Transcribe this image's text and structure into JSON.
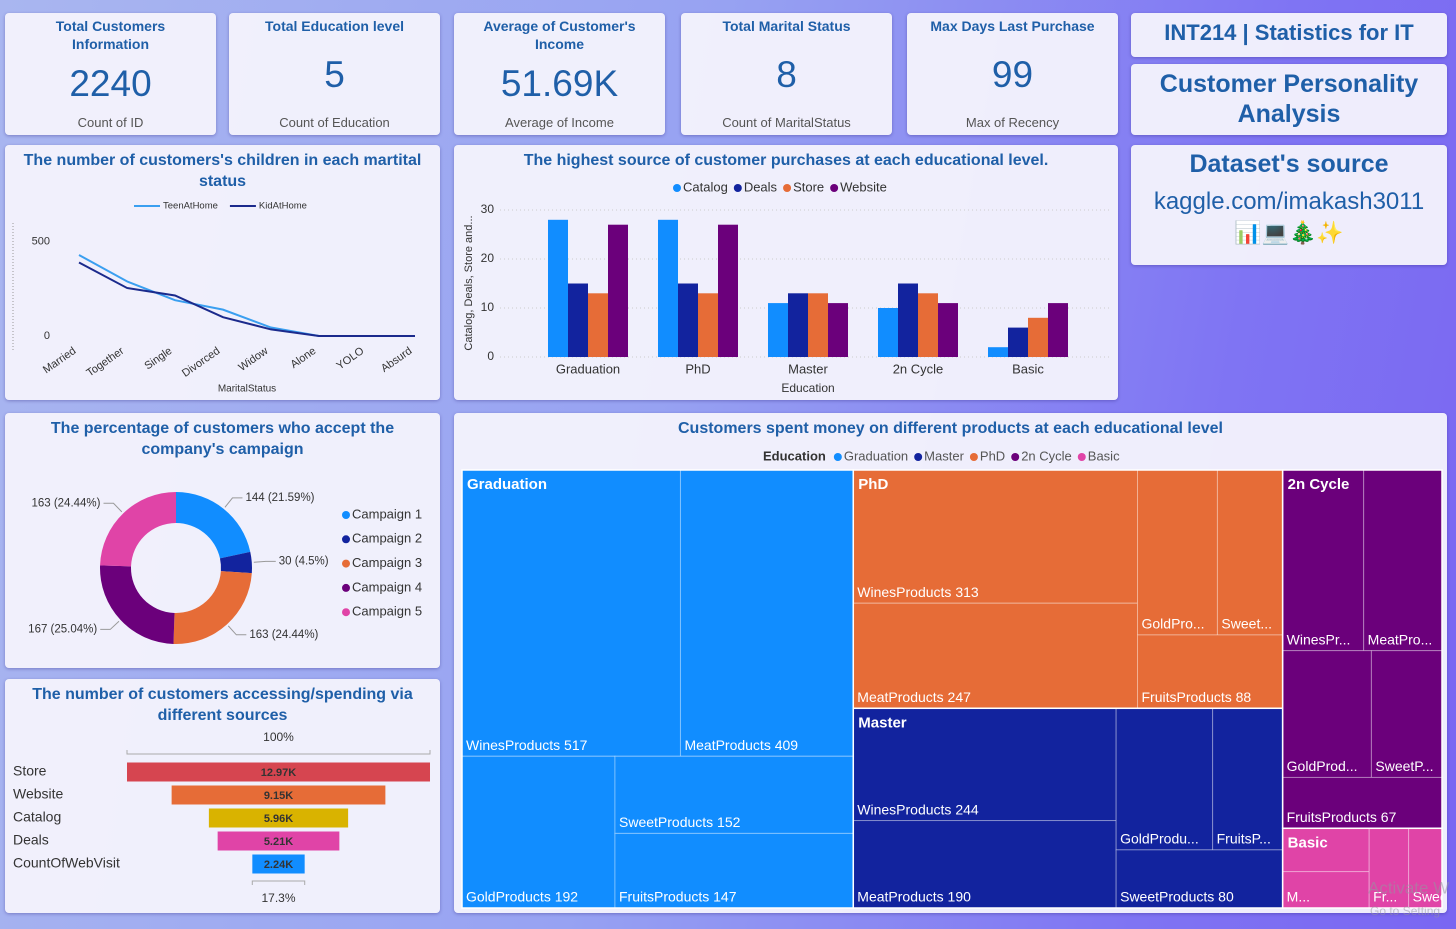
{
  "header": {
    "course": "INT214 | Statistics for IT",
    "title": "Customer Personality Analysis",
    "source_title": "Dataset's source",
    "source": "kaggle.com/imakash3011",
    "icons": "📊💻🎄✨"
  },
  "cards": [
    {
      "title": "Total Customers Information",
      "value": 2240,
      "label": "Count of ID"
    },
    {
      "title": "Total Education level",
      "value": 5,
      "label": "Count of Education"
    },
    {
      "title": "Average of Customer's Income",
      "value": "51.69K",
      "label": "Average of Income"
    },
    {
      "title": "Total Marital Status",
      "value": 8,
      "label": "Count of MaritalStatus"
    },
    {
      "title": "Max Days Last Purchase",
      "value": 99,
      "label": "Max of Recency"
    }
  ],
  "chart_data": [
    {
      "type": "line",
      "title": "The number of customers's children in each martital status",
      "categories": [
        "Married",
        "Together",
        "Single",
        "Divorced",
        "Widow",
        "Alone",
        "YOLO",
        "Absurd"
      ],
      "series": [
        {
          "name": "TeenAtHome",
          "color": "#3a9ff0",
          "values": [
            430,
            290,
            190,
            140,
            45,
            0,
            0,
            0
          ]
        },
        {
          "name": "KidAtHome",
          "color": "#1b2a8c",
          "values": [
            390,
            255,
            215,
            100,
            35,
            0,
            0,
            0
          ]
        }
      ],
      "xlabel": "MaritalStatus",
      "ylim": [
        0,
        600
      ],
      "yticks": [
        0,
        500
      ],
      "grid": false
    },
    {
      "type": "bar",
      "title": "The highest source of customer purchases at each educational level.",
      "categories": [
        "Graduation",
        "PhD",
        "Master",
        "2n Cycle",
        "Basic"
      ],
      "series": [
        {
          "name": "Catalog",
          "color": "#118dff",
          "values": [
            28,
            28,
            11,
            10,
            2
          ]
        },
        {
          "name": "Deals",
          "color": "#12239e",
          "values": [
            15,
            15,
            13,
            15,
            6
          ]
        },
        {
          "name": "Store",
          "color": "#e66c37",
          "values": [
            13,
            13,
            13,
            13,
            8
          ]
        },
        {
          "name": "Website",
          "color": "#6b007b",
          "values": [
            27,
            27,
            11,
            11,
            11
          ]
        }
      ],
      "xlabel": "Education",
      "ylabel": "Catalog, Deals, Store and...",
      "ylim": [
        0,
        30
      ],
      "yticks": [
        0,
        10,
        20,
        30
      ],
      "grid": true
    },
    {
      "type": "donut",
      "title": "The percentage of customers who accept the company's campaign",
      "categories": [
        "Campaign 1",
        "Campaign 2",
        "Campaign 3",
        "Campaign 4",
        "Campaign 5"
      ],
      "values": [
        144,
        30,
        163,
        167,
        163
      ],
      "value_labels": [
        "144 (21.59%)",
        "30 (4.5%)",
        "163 (24.44%)",
        "167 (25.04%)",
        "163 (24.44%)"
      ],
      "colors": [
        "#118dff",
        "#12239e",
        "#e66c37",
        "#6b007b",
        "#e044a7"
      ]
    },
    {
      "type": "funnel",
      "title": "The number of customers accessing/spending via different sources",
      "categories": [
        "Store",
        "Website",
        "Catalog",
        "Deals",
        "CountOfWebVisit"
      ],
      "values": [
        12970,
        9150,
        5960,
        5210,
        2240
      ],
      "value_labels": [
        "12.97K",
        "9.15K",
        "5.96K",
        "5.21K",
        "2.24K"
      ],
      "colors": [
        "#d64550",
        "#e66c37",
        "#d9b300",
        "#e044a7",
        "#118dff"
      ],
      "top_rate": {
        "value": 100,
        "label": "100%"
      },
      "bottom_rate": {
        "value": 17.3,
        "label": "17.3%"
      }
    },
    {
      "type": "treemap",
      "title": "Customers spent money on different products at each educational level",
      "legend_title": "Education",
      "legend": [
        "Graduation",
        "Master",
        "PhD",
        "2n Cycle",
        "Basic"
      ],
      "groups": [
        {
          "name": "Graduation",
          "color": "#118dff",
          "leaves": [
            {
              "label": "WinesProducts 517",
              "value": 517
            },
            {
              "label": "MeatProducts 409",
              "value": 409
            },
            {
              "label": "GoldProducts 192",
              "value": 192
            },
            {
              "label": "SweetProducts 152",
              "value": 152
            },
            {
              "label": "FruitsProducts 147",
              "value": 147
            }
          ]
        },
        {
          "name": "PhD",
          "color": "#e66c37",
          "leaves": [
            {
              "label": "WinesProducts 313",
              "value": 313
            },
            {
              "label": "MeatProducts 247",
              "value": 247
            },
            {
              "label": "GoldPro...",
              "value": 109
            },
            {
              "label": "Sweet...",
              "value": 89
            },
            {
              "label": "FruitsProducts 88",
              "value": 88
            }
          ]
        },
        {
          "name": "Master",
          "color": "#12239e",
          "leaves": [
            {
              "label": "WinesProducts 244",
              "value": 244
            },
            {
              "label": "MeatProducts 190",
              "value": 190
            },
            {
              "label": "GoldProdu...",
              "value": 113
            },
            {
              "label": "FruitsP...",
              "value": 82
            },
            {
              "label": "SweetProducts 80",
              "value": 80
            }
          ]
        },
        {
          "name": "2n Cycle",
          "color": "#6b007b",
          "leaves": [
            {
              "label": "WinesPr...",
              "value": 121
            },
            {
              "label": "MeatPro...",
              "value": 117
            },
            {
              "label": "GoldProd...",
              "value": 93
            },
            {
              "label": "SweetP...",
              "value": 74
            },
            {
              "label": "FruitsProducts 67",
              "value": 67
            }
          ]
        },
        {
          "name": "Basic",
          "color": "#e044a7",
          "leaves": [
            {
              "label": null,
              "value": 31
            },
            {
              "label": "M...",
              "value": 26
            },
            {
              "label": "Fr...",
              "value": 26
            },
            {
              "label": "SweetPr...",
              "value": 22
            }
          ]
        }
      ]
    }
  ],
  "watermark": [
    "Activate W",
    "Go to Setting"
  ]
}
